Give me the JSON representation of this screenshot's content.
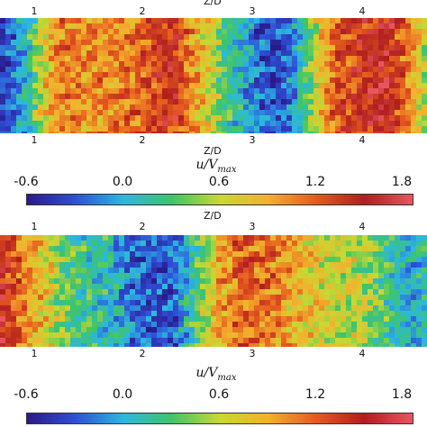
{
  "chart_data": [
    {
      "type": "heatmap",
      "title": "",
      "x_axis_label": "Z/D",
      "x_ticks": [
        "1",
        "2",
        "3",
        "4"
      ],
      "x_tick_values": [
        1,
        2,
        3,
        4
      ],
      "x_range": [
        0.7,
        4.6
      ],
      "colorbar": {
        "label": "u/V",
        "label_sub": "max",
        "ticks": [
          "-0.6",
          "0.0",
          "0.6",
          "1.2",
          "1.8"
        ],
        "range": [
          -0.6,
          1.8
        ],
        "colors": [
          "#2a1a8a",
          "#2f4fd6",
          "#2bb8e0",
          "#3ec46a",
          "#c8d832",
          "#f2b12d",
          "#e5591f",
          "#b01e1e",
          "#e9555f"
        ]
      },
      "profile": {
        "z": [
          0.7,
          0.85,
          1.0,
          1.15,
          1.3,
          1.5,
          1.7,
          1.9,
          2.1,
          2.3,
          2.5,
          2.7,
          2.9,
          3.05,
          3.2,
          3.35,
          3.5,
          3.65,
          3.8,
          4.0,
          4.2,
          4.4,
          4.6
        ],
        "u": [
          -0.4,
          -0.2,
          0.3,
          0.9,
          1.1,
          1.0,
          1.05,
          1.1,
          1.3,
          1.4,
          0.9,
          0.4,
          0.05,
          -0.25,
          -0.35,
          -0.2,
          0.3,
          0.9,
          1.25,
          1.4,
          1.55,
          1.2,
          0.5
        ]
      }
    },
    {
      "type": "heatmap",
      "title": "",
      "x_axis_label": "Z/D",
      "x_ticks": [
        "1",
        "2",
        "3",
        "4"
      ],
      "x_tick_values": [
        1,
        2,
        3,
        4
      ],
      "x_range": [
        0.7,
        4.6
      ],
      "colorbar": {
        "label": "u/V",
        "label_sub": "max",
        "ticks": [
          "-0.6",
          "0.0",
          "0.6",
          "1.2",
          "1.8"
        ],
        "range": [
          -0.6,
          1.8
        ],
        "colors": [
          "#2a1a8a",
          "#2f4fd6",
          "#2bb8e0",
          "#3ec46a",
          "#c8d832",
          "#f2b12d",
          "#e5591f",
          "#b01e1e",
          "#e9555f"
        ]
      },
      "profile": {
        "z": [
          0.7,
          0.85,
          1.0,
          1.15,
          1.3,
          1.5,
          1.7,
          1.9,
          2.1,
          2.3,
          2.5,
          2.7,
          2.9,
          3.05,
          3.2,
          3.35,
          3.5,
          3.65,
          3.8,
          4.0,
          4.2,
          4.4,
          4.6
        ],
        "u": [
          1.5,
          1.2,
          0.9,
          0.7,
          0.4,
          0.2,
          0.1,
          -0.2,
          -0.3,
          -0.25,
          0.3,
          0.9,
          1.2,
          1.15,
          1.1,
          0.9,
          0.8,
          0.7,
          0.6,
          0.6,
          0.3,
          0.0,
          0.1
        ]
      }
    }
  ]
}
